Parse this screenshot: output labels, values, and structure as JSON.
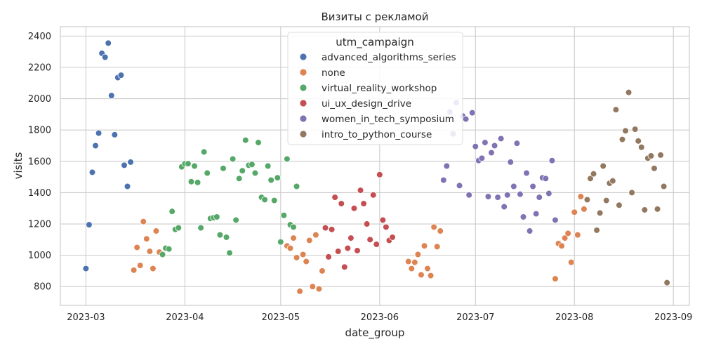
{
  "chart_data": {
    "type": "scatter",
    "title": "Визиты с рекламой",
    "xlabel": "date_group",
    "ylabel": "visits",
    "x_axis": {
      "type": "date",
      "range": [
        "2023-02-21",
        "2023-09-06"
      ],
      "ticks": [
        "2023-03-01",
        "2023-04-01",
        "2023-05-01",
        "2023-06-01",
        "2023-07-01",
        "2023-08-01",
        "2023-09-01"
      ],
      "tick_labels": [
        "2023-03",
        "2023-04",
        "2023-05",
        "2023-06",
        "2023-07",
        "2023-08",
        "2023-09"
      ]
    },
    "y_axis": {
      "range": [
        680,
        2460
      ],
      "ticks": [
        800,
        1000,
        1200,
        1400,
        1600,
        1800,
        2000,
        2200,
        2400
      ],
      "tick_labels": [
        "800",
        "1000",
        "1200",
        "1400",
        "1600",
        "1800",
        "2000",
        "2200",
        "2400"
      ]
    },
    "grid": true,
    "legend": {
      "title": "utm_campaign",
      "placement": "top-center"
    },
    "series": [
      {
        "name": "advanced_algorithms_series",
        "color": "#4c72b0",
        "points": [
          [
            "2023-03-01",
            915
          ],
          [
            "2023-03-02",
            1195
          ],
          [
            "2023-03-03",
            1530
          ],
          [
            "2023-03-04",
            1700
          ],
          [
            "2023-03-05",
            1780
          ],
          [
            "2023-03-06",
            2290
          ],
          [
            "2023-03-07",
            2265
          ],
          [
            "2023-03-08",
            2355
          ],
          [
            "2023-03-09",
            2020
          ],
          [
            "2023-03-10",
            1770
          ],
          [
            "2023-03-11",
            2135
          ],
          [
            "2023-03-12",
            2150
          ],
          [
            "2023-03-13",
            1575
          ],
          [
            "2023-03-14",
            1440
          ],
          [
            "2023-03-15",
            1595
          ]
        ]
      },
      {
        "name": "none",
        "color": "#dd8452",
        "points": [
          [
            "2023-03-16",
            905
          ],
          [
            "2023-03-17",
            1050
          ],
          [
            "2023-03-18",
            935
          ],
          [
            "2023-03-19",
            1215
          ],
          [
            "2023-03-20",
            1105
          ],
          [
            "2023-03-21",
            1025
          ],
          [
            "2023-03-22",
            915
          ],
          [
            "2023-03-23",
            1155
          ],
          [
            "2023-03-24",
            1020
          ],
          [
            "2023-05-03",
            1060
          ],
          [
            "2023-05-04",
            1045
          ],
          [
            "2023-05-05",
            1110
          ],
          [
            "2023-05-06",
            985
          ],
          [
            "2023-05-07",
            770
          ],
          [
            "2023-05-08",
            1005
          ],
          [
            "2023-05-09",
            960
          ],
          [
            "2023-05-10",
            1095
          ],
          [
            "2023-05-11",
            800
          ],
          [
            "2023-05-12",
            1130
          ],
          [
            "2023-05-13",
            785
          ],
          [
            "2023-05-14",
            900
          ],
          [
            "2023-06-10",
            960
          ],
          [
            "2023-06-11",
            915
          ],
          [
            "2023-06-12",
            955
          ],
          [
            "2023-06-13",
            1005
          ],
          [
            "2023-06-14",
            875
          ],
          [
            "2023-06-15",
            1060
          ],
          [
            "2023-06-16",
            915
          ],
          [
            "2023-06-17",
            870
          ],
          [
            "2023-06-18",
            1180
          ],
          [
            "2023-06-19",
            1055
          ],
          [
            "2023-06-20",
            1155
          ],
          [
            "2023-07-26",
            850
          ],
          [
            "2023-07-27",
            1075
          ],
          [
            "2023-07-28",
            1060
          ],
          [
            "2023-07-29",
            1110
          ],
          [
            "2023-07-30",
            1140
          ],
          [
            "2023-07-31",
            955
          ],
          [
            "2023-08-01",
            1275
          ],
          [
            "2023-08-02",
            1130
          ],
          [
            "2023-08-03",
            1375
          ],
          [
            "2023-08-04",
            1295
          ]
        ]
      },
      {
        "name": "virtual_reality_workshop",
        "color": "#55a868",
        "points": [
          [
            "2023-03-25",
            1005
          ],
          [
            "2023-03-26",
            1045
          ],
          [
            "2023-03-27",
            1040
          ],
          [
            "2023-03-28",
            1280
          ],
          [
            "2023-03-29",
            1165
          ],
          [
            "2023-03-30",
            1175
          ],
          [
            "2023-03-31",
            1565
          ],
          [
            "2023-04-01",
            1585
          ],
          [
            "2023-04-02",
            1585
          ],
          [
            "2023-04-03",
            1470
          ],
          [
            "2023-04-04",
            1570
          ],
          [
            "2023-04-05",
            1465
          ],
          [
            "2023-04-06",
            1175
          ],
          [
            "2023-04-07",
            1660
          ],
          [
            "2023-04-08",
            1525
          ],
          [
            "2023-04-09",
            1235
          ],
          [
            "2023-04-10",
            1240
          ],
          [
            "2023-04-11",
            1245
          ],
          [
            "2023-04-12",
            1130
          ],
          [
            "2023-04-13",
            1555
          ],
          [
            "2023-04-14",
            1115
          ],
          [
            "2023-04-15",
            1015
          ],
          [
            "2023-04-16",
            1615
          ],
          [
            "2023-04-17",
            1225
          ],
          [
            "2023-04-18",
            1490
          ],
          [
            "2023-04-19",
            1540
          ],
          [
            "2023-04-20",
            1735
          ],
          [
            "2023-04-21",
            1575
          ],
          [
            "2023-04-22",
            1580
          ],
          [
            "2023-04-23",
            1525
          ],
          [
            "2023-04-24",
            1720
          ],
          [
            "2023-04-25",
            1370
          ],
          [
            "2023-04-26",
            1355
          ],
          [
            "2023-04-27",
            1570
          ],
          [
            "2023-04-28",
            1480
          ],
          [
            "2023-04-29",
            1350
          ],
          [
            "2023-04-30",
            1495
          ],
          [
            "2023-05-01",
            1085
          ],
          [
            "2023-05-02",
            1255
          ],
          [
            "2023-05-03",
            1615
          ],
          [
            "2023-05-04",
            1195
          ],
          [
            "2023-05-05",
            1180
          ],
          [
            "2023-05-06",
            1440
          ]
        ]
      },
      {
        "name": "ui_ux_design_drive",
        "color": "#c44e52",
        "points": [
          [
            "2023-05-15",
            1175
          ],
          [
            "2023-05-16",
            990
          ],
          [
            "2023-05-17",
            1165
          ],
          [
            "2023-05-18",
            1370
          ],
          [
            "2023-05-19",
            1025
          ],
          [
            "2023-05-20",
            1330
          ],
          [
            "2023-05-21",
            925
          ],
          [
            "2023-05-22",
            1045
          ],
          [
            "2023-05-23",
            1110
          ],
          [
            "2023-05-24",
            1300
          ],
          [
            "2023-05-25",
            1030
          ],
          [
            "2023-05-26",
            1415
          ],
          [
            "2023-05-27",
            1330
          ],
          [
            "2023-05-28",
            1200
          ],
          [
            "2023-05-29",
            1100
          ],
          [
            "2023-05-30",
            1385
          ],
          [
            "2023-05-31",
            1070
          ],
          [
            "2023-06-01",
            1515
          ],
          [
            "2023-06-02",
            1225
          ],
          [
            "2023-06-03",
            1180
          ],
          [
            "2023-06-04",
            1095
          ],
          [
            "2023-06-05",
            1115
          ]
        ]
      },
      {
        "name": "women_in_tech_symposium",
        "color": "#8172b3",
        "points": [
          [
            "2023-06-21",
            1480
          ],
          [
            "2023-06-22",
            1570
          ],
          [
            "2023-06-23",
            1915
          ],
          [
            "2023-06-24",
            1775
          ],
          [
            "2023-06-25",
            1975
          ],
          [
            "2023-06-26",
            1445
          ],
          [
            "2023-06-27",
            1890
          ],
          [
            "2023-06-28",
            1870
          ],
          [
            "2023-06-29",
            1385
          ],
          [
            "2023-06-30",
            1910
          ],
          [
            "2023-07-01",
            1695
          ],
          [
            "2023-07-02",
            1605
          ],
          [
            "2023-07-03",
            1620
          ],
          [
            "2023-07-04",
            1720
          ],
          [
            "2023-07-05",
            1375
          ],
          [
            "2023-07-06",
            1655
          ],
          [
            "2023-07-07",
            1700
          ],
          [
            "2023-07-08",
            1370
          ],
          [
            "2023-07-09",
            1745
          ],
          [
            "2023-07-10",
            1310
          ],
          [
            "2023-07-11",
            1385
          ],
          [
            "2023-07-12",
            1595
          ],
          [
            "2023-07-13",
            1440
          ],
          [
            "2023-07-14",
            1715
          ],
          [
            "2023-07-15",
            1390
          ],
          [
            "2023-07-16",
            1245
          ],
          [
            "2023-07-17",
            1525
          ],
          [
            "2023-07-18",
            1155
          ],
          [
            "2023-07-19",
            1440
          ],
          [
            "2023-07-20",
            1265
          ],
          [
            "2023-07-21",
            1370
          ],
          [
            "2023-07-22",
            1495
          ],
          [
            "2023-07-23",
            1490
          ],
          [
            "2023-07-24",
            1395
          ],
          [
            "2023-07-25",
            1605
          ],
          [
            "2023-07-26",
            1225
          ]
        ]
      },
      {
        "name": "intro_to_python_course",
        "color": "#937860",
        "points": [
          [
            "2023-08-05",
            1355
          ],
          [
            "2023-08-06",
            1490
          ],
          [
            "2023-08-07",
            1520
          ],
          [
            "2023-08-08",
            1160
          ],
          [
            "2023-08-09",
            1270
          ],
          [
            "2023-08-10",
            1570
          ],
          [
            "2023-08-11",
            1350
          ],
          [
            "2023-08-12",
            1460
          ],
          [
            "2023-08-13",
            1475
          ],
          [
            "2023-08-14",
            1930
          ],
          [
            "2023-08-15",
            1320
          ],
          [
            "2023-08-16",
            1740
          ],
          [
            "2023-08-17",
            1795
          ],
          [
            "2023-08-18",
            2040
          ],
          [
            "2023-08-19",
            1400
          ],
          [
            "2023-08-20",
            1805
          ],
          [
            "2023-08-21",
            1730
          ],
          [
            "2023-08-22",
            1690
          ],
          [
            "2023-08-23",
            1290
          ],
          [
            "2023-08-24",
            1620
          ],
          [
            "2023-08-25",
            1635
          ],
          [
            "2023-08-26",
            1555
          ],
          [
            "2023-08-27",
            1295
          ],
          [
            "2023-08-28",
            1640
          ],
          [
            "2023-08-29",
            1440
          ],
          [
            "2023-08-30",
            825
          ]
        ]
      }
    ]
  }
}
